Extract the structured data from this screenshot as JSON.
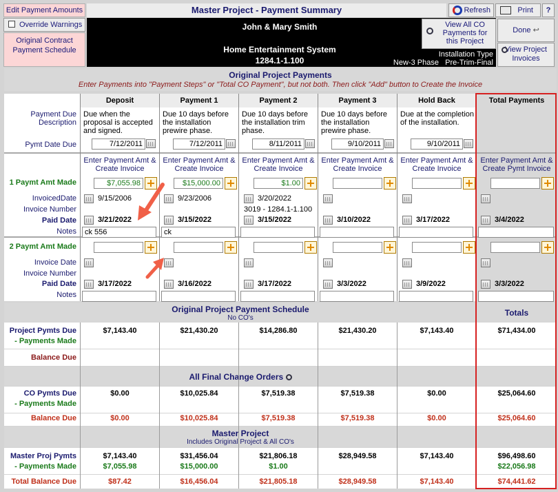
{
  "top": {
    "edit_amounts": "Edit Payment Amounts",
    "override": "Override Warnings",
    "original_schedule": "Original Contract Payment Schedule",
    "title": "Master Project - Payment Summary",
    "refresh": "Refresh",
    "print": "Print",
    "help": "?",
    "customer": "John & Mary Smith",
    "project_name": "Home Entertainment System",
    "project_code": "1284.1-1.100",
    "view_co": "View All CO Payments for this Project",
    "done": "Done",
    "install_type_label": "Installation Type",
    "install_type": "New-3 Phase   Pre-Trim-Final",
    "view_invoices": "View Project Invoices"
  },
  "section1": {
    "title": "Original Project Payments",
    "instruction": "Enter Payments into \"Payment Steps\" or  \"Total CO Payment\", but not both.  Then click \"Add\" button to Create the Invoice"
  },
  "labels": {
    "pay_due_desc": "Payment Due Description",
    "pymt_date_due": "Pymt Date Due",
    "paymt1": "1 Paymt Amt Made",
    "invoiced_date": "InvoicedDate",
    "invoice_number": "Invoice Number",
    "paid_date": "Paid Date",
    "notes": "Notes",
    "paymt2": "2 Paymt Amt Made",
    "invoice_date": "Invoice Date",
    "total_payments": "Total Payments",
    "enter_amt": "Enter Payment Amt & Create Invoice",
    "enter_amt_total": "Enter Payment Amt & Create Pymt Invoice"
  },
  "columns": [
    {
      "name": "Deposit",
      "desc": "Due when the proposal is accepted and signed.",
      "due": "7/12/2011",
      "p1_amt": "$7,055.98",
      "p1_inv_date": "9/15/2006",
      "p1_inv_no": "",
      "p1_paid": "3/21/2022",
      "p1_notes": "ck 556",
      "p2_amt": "",
      "p2_paid": "3/17/2022",
      "pymts_due": "$7,143.40",
      "co_due": "$0.00",
      "co_balance": "$0.00",
      "master_due": "$7,143.40",
      "master_made": "$7,055.98",
      "total_balance": "$87.42"
    },
    {
      "name": "Payment 1",
      "desc": "Due 10 days before the installation prewire phase.",
      "due": "7/12/2011",
      "p1_amt": "$15,000.00",
      "p1_inv_date": "9/23/2006",
      "p1_inv_no": "",
      "p1_paid": "3/15/2022",
      "p1_notes": "ck",
      "p2_amt": "",
      "p2_paid": "3/16/2022",
      "pymts_due": "$21,430.20",
      "co_due": "$10,025.84",
      "co_balance": "$10,025.84",
      "master_due": "$31,456.04",
      "master_made": "$15,000.00",
      "total_balance": "$16,456.04"
    },
    {
      "name": "Payment 2",
      "desc": "Due 10 days before the installation trim phase.",
      "due": "8/11/2011",
      "p1_amt": "$1.00",
      "p1_inv_date": "3/20/2022",
      "p1_inv_no": "3019 - 1284.1-1.100",
      "p1_paid": "3/15/2022",
      "p1_notes": "",
      "p2_amt": "",
      "p2_paid": "3/17/2022",
      "pymts_due": "$14,286.80",
      "co_due": "$7,519.38",
      "co_balance": "$7,519.38",
      "master_due": "$21,806.18",
      "master_made": "$1.00",
      "total_balance": "$21,805.18"
    },
    {
      "name": "Payment 3",
      "desc": "Due 10 days before the installation prewire phase.",
      "due": "9/10/2011",
      "p1_amt": "",
      "p1_inv_date": "",
      "p1_inv_no": "",
      "p1_paid": "3/10/2022",
      "p1_notes": "",
      "p2_amt": "",
      "p2_paid": "3/3/2022",
      "pymts_due": "$21,430.20",
      "co_due": "$7,519.38",
      "co_balance": "$7,519.38",
      "master_due": "$28,949.58",
      "master_made": "",
      "total_balance": "$28,949.58"
    },
    {
      "name": "Hold Back",
      "desc": "Due at the completion of the installation.",
      "due": "9/10/2011",
      "p1_amt": "",
      "p1_inv_date": "",
      "p1_inv_no": "",
      "p1_paid": "3/17/2022",
      "p1_notes": "",
      "p2_amt": "",
      "p2_paid": "3/9/2022",
      "pymts_due": "$7,143.40",
      "co_due": "$0.00",
      "co_balance": "$0.00",
      "master_due": "$7,143.40",
      "master_made": "",
      "total_balance": "$7,143.40"
    }
  ],
  "total_col": {
    "p1_paid": "3/4/2022",
    "p2_paid": "3/3/2022",
    "pymts_due": "$71,434.00",
    "co_due": "$25,064.60",
    "co_balance": "$25,064.60",
    "master_due": "$96,498.60",
    "master_made": "$22,056.98",
    "total_balance": "$74,441.62"
  },
  "schedule": {
    "title": "Original Project Payment Schedule",
    "subtitle": "No CO's",
    "totals": "Totals",
    "pymts_due": "Project Pymts Due",
    "pymts_made": "- Payments Made",
    "balance_due": "Balance Due"
  },
  "co": {
    "title": "All Final Change Orders",
    "pymts_due": "CO Pymts Due",
    "pymts_made": "- Payments Made",
    "balance_due": "Balance Due"
  },
  "master": {
    "title": "Master Project",
    "subtitle": "Includes Original Project & All CO's",
    "pymts_due": "Master Proj Pymts",
    "pymts_made": "- Payments Made",
    "total_balance": "Total Balance Due"
  },
  "colors": {
    "navy": "#1a1a6e",
    "green": "#1a7a1a",
    "red": "#c0301a",
    "highlight": "#d62020",
    "arrow": "#f06048"
  }
}
